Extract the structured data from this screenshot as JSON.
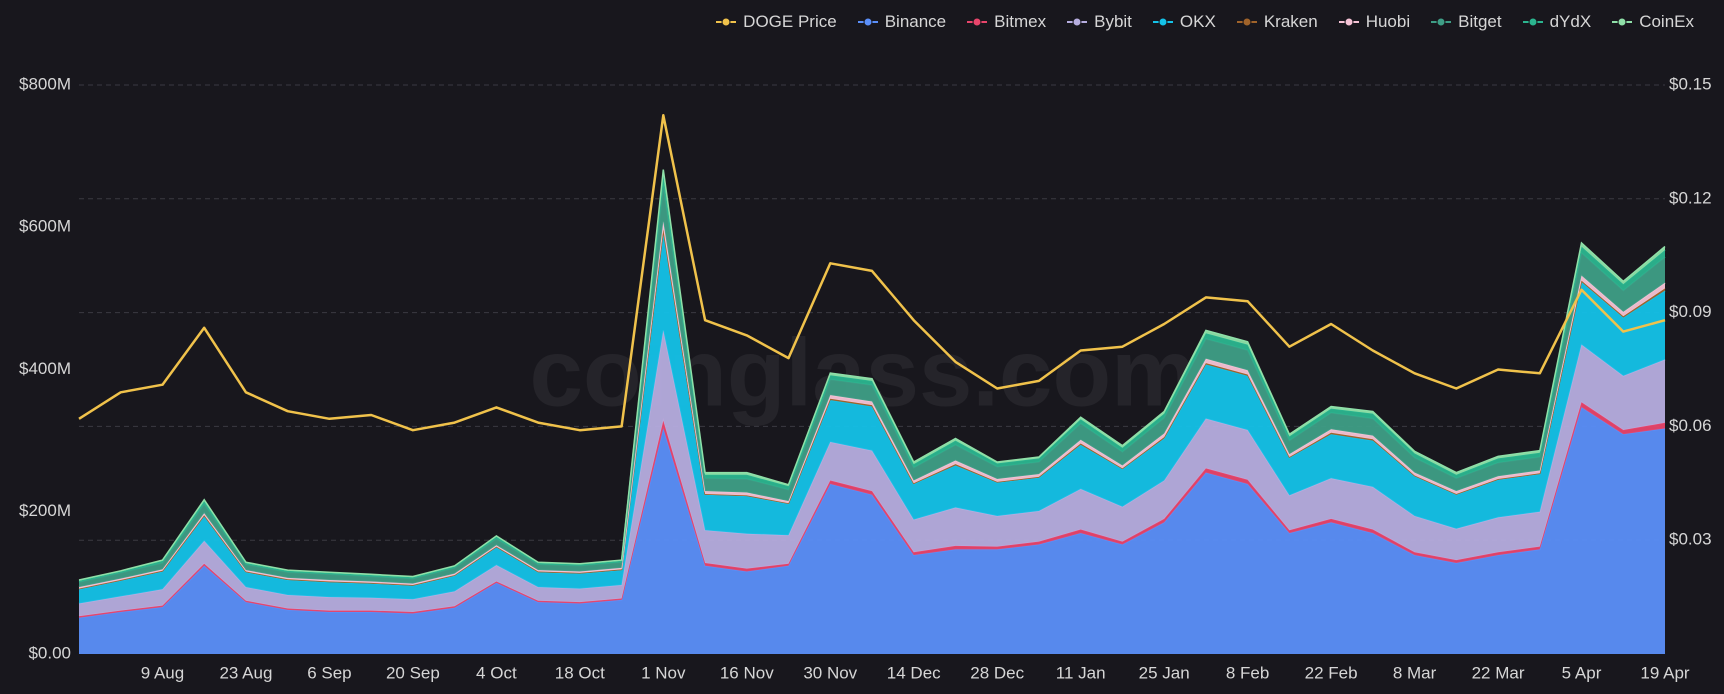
{
  "chart_data": {
    "type": "stacked-area",
    "watermark": "coinglass.com",
    "categories": [
      null,
      null,
      "9 Aug",
      null,
      "23 Aug",
      null,
      "6 Sep",
      null,
      "20 Sep",
      null,
      "4 Oct",
      null,
      "18 Oct",
      null,
      "1 Nov",
      null,
      "16 Nov",
      null,
      "30 Nov",
      null,
      "14 Dec",
      null,
      "28 Dec",
      null,
      "11 Jan",
      null,
      "25 Jan",
      null,
      "8 Feb",
      null,
      "22 Feb",
      null,
      "8 Mar",
      null,
      "22 Mar",
      null,
      "5 Apr",
      null,
      "19 Apr"
    ],
    "ylim": [
      0,
      800
    ],
    "yticks": [
      {
        "value": 0,
        "label": "$0.00"
      },
      {
        "value": 200,
        "label": "$200M"
      },
      {
        "value": 400,
        "label": "$400M"
      },
      {
        "value": 600,
        "label": "$600M"
      },
      {
        "value": 800,
        "label": "$800M"
      }
    ],
    "y2lim": [
      0,
      0.15
    ],
    "y2ticks": [
      {
        "value": 0.03,
        "label": "$0.03"
      },
      {
        "value": 0.06,
        "label": "$0.06"
      },
      {
        "value": 0.09,
        "label": "$0.09"
      },
      {
        "value": 0.12,
        "label": "$0.12"
      },
      {
        "value": 0.15,
        "label": "$0.15"
      }
    ],
    "grid": true,
    "legend": "top-right",
    "series": [
      {
        "name": "DOGE Price",
        "color": "#f0c24b",
        "axis": "y2",
        "values": [
          0.062,
          0.069,
          0.071,
          0.086,
          0.069,
          0.064,
          0.062,
          0.063,
          0.059,
          0.061,
          0.065,
          0.061,
          0.059,
          0.06,
          0.142,
          0.088,
          0.084,
          0.078,
          0.103,
          0.101,
          0.088,
          0.077,
          0.07,
          0.072,
          0.08,
          0.081,
          0.087,
          0.094,
          0.093,
          0.081,
          0.087,
          0.08,
          0.074,
          0.07,
          0.075,
          0.074,
          0.096,
          0.085,
          0.088
        ]
      },
      {
        "name": "Binance",
        "color": "#5b8ff9",
        "values": [
          51,
          59,
          66,
          124,
          73,
          62,
          59,
          59,
          57,
          65,
          100,
          73,
          71,
          76,
          317,
          124,
          116,
          124,
          239,
          224,
          139,
          147,
          147,
          154,
          170,
          154,
          185,
          255,
          239,
          170,
          185,
          170,
          139,
          128,
          139,
          147,
          347,
          309,
          317
        ]
      },
      {
        "name": "Bitmex",
        "color": "#e8456b",
        "values": [
          2,
          2,
          2,
          3,
          2,
          2,
          2,
          2,
          2,
          2,
          2,
          2,
          2,
          2,
          11,
          4,
          4,
          3,
          5,
          5,
          4,
          5,
          4,
          4,
          5,
          4,
          5,
          6,
          6,
          4,
          5,
          5,
          4,
          4,
          4,
          4,
          7,
          6,
          8
        ]
      },
      {
        "name": "Bybit",
        "color": "#b6addf",
        "values": [
          18,
          20,
          23,
          32,
          19,
          19,
          19,
          18,
          18,
          21,
          23,
          19,
          19,
          19,
          127,
          46,
          49,
          40,
          54,
          57,
          46,
          54,
          43,
          43,
          57,
          49,
          54,
          70,
          70,
          49,
          57,
          60,
          51,
          44,
          49,
          49,
          81,
          76,
          89
        ]
      },
      {
        "name": "OKX",
        "color": "#14c2e8",
        "values": [
          20,
          22,
          25,
          35,
          21,
          21,
          21,
          20,
          19,
          22,
          25,
          21,
          21,
          21,
          138,
          50,
          53,
          44,
          59,
          62,
          50,
          59,
          47,
          47,
          62,
          53,
          59,
          76,
          76,
          53,
          62,
          65,
          56,
          48,
          53,
          53,
          88,
          82,
          97
        ]
      },
      {
        "name": "Kraken",
        "color": "#a0632a",
        "values": [
          1,
          1,
          1,
          1,
          1,
          1,
          1,
          1,
          1,
          1,
          1,
          1,
          1,
          1,
          4,
          1,
          1,
          1,
          2,
          2,
          1,
          2,
          1,
          1,
          2,
          1,
          2,
          2,
          2,
          1,
          2,
          2,
          1,
          1,
          1,
          1,
          2,
          2,
          3
        ]
      },
      {
        "name": "Huobi",
        "color": "#f6c3d6",
        "values": [
          2,
          2,
          2,
          3,
          2,
          2,
          2,
          2,
          2,
          2,
          2,
          2,
          2,
          2,
          11,
          4,
          4,
          3,
          5,
          5,
          4,
          5,
          4,
          4,
          5,
          4,
          5,
          6,
          6,
          4,
          5,
          5,
          4,
          4,
          4,
          4,
          7,
          6,
          8
        ]
      },
      {
        "name": "Bitget",
        "color": "#3e9e86",
        "values": [
          7,
          8,
          9,
          13,
          8,
          8,
          8,
          7,
          7,
          8,
          9,
          8,
          8,
          8,
          51,
          18,
          19,
          16,
          22,
          23,
          18,
          22,
          17,
          17,
          23,
          19,
          22,
          28,
          28,
          19,
          23,
          24,
          21,
          18,
          19,
          19,
          32,
          30,
          36
        ]
      },
      {
        "name": "dYdX",
        "color": "#2bb58f",
        "values": [
          2,
          2,
          3,
          4,
          2,
          2,
          2,
          2,
          2,
          2,
          3,
          2,
          2,
          2,
          15,
          5,
          6,
          5,
          6,
          6,
          5,
          6,
          5,
          5,
          6,
          6,
          6,
          8,
          8,
          6,
          6,
          7,
          6,
          5,
          6,
          6,
          9,
          9,
          10
        ]
      },
      {
        "name": "CoinEx",
        "color": "#8fe0a8",
        "values": [
          1,
          1,
          1,
          2,
          1,
          1,
          1,
          1,
          1,
          1,
          1,
          1,
          1,
          1,
          7,
          3,
          3,
          2,
          3,
          3,
          3,
          3,
          2,
          2,
          3,
          3,
          3,
          4,
          4,
          3,
          3,
          3,
          3,
          3,
          3,
          3,
          5,
          4,
          5
        ]
      }
    ]
  }
}
